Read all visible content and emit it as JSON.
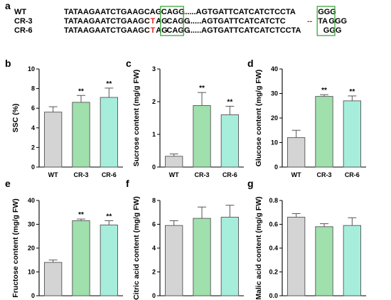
{
  "figure": {
    "panel_a": {
      "letter": "a",
      "rows": [
        {
          "label": "WT",
          "segments": [
            {
              "text": "TATAAGAATCTGAAGCAG",
              "color": "#000000"
            },
            {
              "text": "CAGG",
              "color": "#000000",
              "box": true
            },
            {
              "text": "......AGTGATTCATCATCTCCTA",
              "color": "#000000"
            },
            {
              "text": "GGG",
              "color": "#000000",
              "box2": true
            }
          ]
        },
        {
          "label": "CR-3",
          "segments": [
            {
              "text": "TATAAGAATCTGAAGC",
              "color": "#000000"
            },
            {
              "text": "T",
              "color": "#e0201c"
            },
            {
              "text": "AG",
              "color": "#000000"
            },
            {
              "text": "CAGG",
              "color": "#000000",
              "box": true
            },
            {
              "text": "......AGTGATTCATCATCTC",
              "color": "#000000"
            },
            {
              "text": "--",
              "color": "#e0201c"
            },
            {
              "text": "TA",
              "color": "#000000"
            },
            {
              "text": "GGG",
              "color": "#000000",
              "box2": true
            }
          ]
        },
        {
          "label": "CR-6",
          "segments": [
            {
              "text": "TATAAGAATCTGAAGC",
              "color": "#000000"
            },
            {
              "text": "T",
              "color": "#e0201c"
            },
            {
              "text": "AG",
              "color": "#000000"
            },
            {
              "text": "CAGG",
              "color": "#000000",
              "box": true
            },
            {
              "text": "......AGTGATTCATCATCTCCTA",
              "color": "#000000"
            },
            {
              "text": "GGG",
              "color": "#000000",
              "box2": true
            }
          ]
        }
      ],
      "box_color": "#3aa83a"
    }
  },
  "colors": {
    "WT": "#d4d4d4",
    "CR-3": "#9fe0ad",
    "CR-6": "#a6eddc",
    "edge": "#555555"
  },
  "chart_data": [
    {
      "panel": "b",
      "type": "bar",
      "categories": [
        "WT",
        "CR-3",
        "CR-6"
      ],
      "values": [
        5.6,
        6.6,
        7.1
      ],
      "errors": [
        0.55,
        0.7,
        0.95
      ],
      "significance": [
        "",
        "**",
        "**"
      ],
      "ylabel": "SSC (%)",
      "ylim": [
        0,
        10
      ],
      "yticks": [
        0,
        2,
        4,
        6,
        8,
        10
      ],
      "grid": false
    },
    {
      "panel": "c",
      "type": "bar",
      "categories": [
        "WT",
        "CR-3",
        "CR-6"
      ],
      "values": [
        0.33,
        1.88,
        1.6
      ],
      "errors": [
        0.07,
        0.4,
        0.26
      ],
      "significance": [
        "",
        "**",
        "**"
      ],
      "ylabel": "Sucrose content (mg/g FW)",
      "ylim": [
        0,
        3
      ],
      "yticks": [
        0,
        1,
        2,
        3
      ],
      "grid": false
    },
    {
      "panel": "d",
      "type": "bar",
      "categories": [
        "WT",
        "CR-3",
        "CR-6"
      ],
      "values": [
        12,
        28.8,
        27
      ],
      "errors": [
        3,
        0.7,
        2
      ],
      "significance": [
        "",
        "**",
        "**"
      ],
      "ylabel": "Glucose content (mg/g FW)",
      "ylim": [
        0,
        40
      ],
      "yticks": [
        0,
        10,
        20,
        30,
        40
      ],
      "grid": false
    },
    {
      "panel": "e",
      "type": "bar",
      "categories": [
        "WT",
        "CR-3",
        "CR-6"
      ],
      "values": [
        14,
        31.5,
        29.7
      ],
      "errors": [
        1,
        0.7,
        1.8
      ],
      "significance": [
        "",
        "**",
        "**"
      ],
      "ylabel": "Fructose content (mg/g FW)",
      "ylim": [
        0,
        40
      ],
      "yticks": [
        0,
        10,
        20,
        30,
        40
      ],
      "grid": false
    },
    {
      "panel": "f",
      "type": "bar",
      "categories": [
        "WT",
        "CR-3",
        "CR-6"
      ],
      "values": [
        5.9,
        6.5,
        6.6
      ],
      "errors": [
        0.4,
        0.95,
        1.0
      ],
      "significance": [
        "",
        "",
        ""
      ],
      "ylabel": "Citric acid content (mg/g FW)",
      "ylim": [
        0,
        8
      ],
      "yticks": [
        0,
        2,
        4,
        6,
        8
      ],
      "grid": false
    },
    {
      "panel": "g",
      "type": "bar",
      "categories": [
        "WT",
        "CR-3",
        "CR-6"
      ],
      "values": [
        0.66,
        0.58,
        0.59
      ],
      "errors": [
        0.03,
        0.025,
        0.065
      ],
      "significance": [
        "",
        "",
        ""
      ],
      "ylabel": "Malic acid content (mg/g FW)",
      "ylim": [
        0,
        0.8
      ],
      "yticks": [
        0.0,
        0.2,
        0.4,
        0.6,
        0.8
      ],
      "grid": false
    }
  ]
}
